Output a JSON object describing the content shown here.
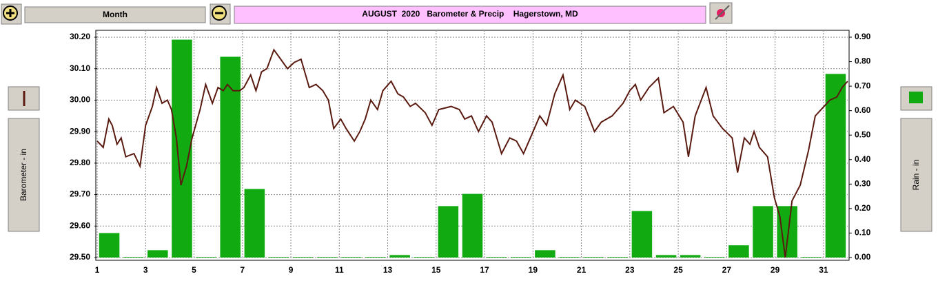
{
  "toolbar": {
    "period": "Month"
  },
  "chart_data": {
    "type": "combo",
    "title": "AUGUST  2020   Barometer & Precip    Hagerstown, MD",
    "xlim": [
      1,
      32
    ],
    "xticks": [
      1,
      3,
      5,
      7,
      9,
      11,
      13,
      15,
      17,
      19,
      21,
      23,
      25,
      27,
      29,
      31
    ],
    "ylim": [
      29.5,
      30.2
    ],
    "yticks": [
      {
        "value": 29.5,
        "label": "29.50"
      },
      {
        "value": 29.6,
        "label": "29.60"
      },
      {
        "value": 29.7,
        "label": "29.70"
      },
      {
        "value": 29.8,
        "label": "29.80"
      },
      {
        "value": 29.9,
        "label": "29.90"
      },
      {
        "value": 30.0,
        "label": "30.00"
      },
      {
        "value": 30.1,
        "label": "30.10"
      },
      {
        "value": 30.2,
        "label": "30.20"
      }
    ],
    "y2lim": [
      0,
      0.9
    ],
    "y2ticks": [
      {
        "value": 0,
        "label": "0.00"
      },
      {
        "value": 0.1,
        "label": "0.10"
      },
      {
        "value": 0.2,
        "label": "0.20"
      },
      {
        "value": 0.3,
        "label": "0.30"
      },
      {
        "value": 0.4,
        "label": "0.40"
      },
      {
        "value": 0.5,
        "label": "0.50"
      },
      {
        "value": 0.6,
        "label": "0.60"
      },
      {
        "value": 0.7,
        "label": "0.70"
      },
      {
        "value": 0.8,
        "label": "0.80"
      },
      {
        "value": 0.9,
        "label": "0.90"
      }
    ],
    "grid": true,
    "series": [
      {
        "name": "Barometer - in",
        "type": "line",
        "color": "#5a1a10",
        "x": [
          1.0,
          1.25,
          1.48,
          1.62,
          1.82,
          1.99,
          2.18,
          2.52,
          2.77,
          3.0,
          3.28,
          3.45,
          3.68,
          3.9,
          4.07,
          4.27,
          4.46,
          4.69,
          4.92,
          5.25,
          5.48,
          5.76,
          5.99,
          6.21,
          6.38,
          6.61,
          6.89,
          7.06,
          7.34,
          7.56,
          7.79,
          8.01,
          8.3,
          8.58,
          8.86,
          9.14,
          9.42,
          9.76,
          10.04,
          10.32,
          10.55,
          10.77,
          11.06,
          11.28,
          11.62,
          11.85,
          12.07,
          12.3,
          12.58,
          12.8,
          13.14,
          13.42,
          13.65,
          13.93,
          14.15,
          14.55,
          14.83,
          15.11,
          15.62,
          15.96,
          16.18,
          16.46,
          16.75,
          17.08,
          17.31,
          17.7,
          18.04,
          18.32,
          18.61,
          18.89,
          19.28,
          19.56,
          19.9,
          20.24,
          20.52,
          20.75,
          21.14,
          21.54,
          21.82,
          22.27,
          22.72,
          23.0,
          23.23,
          23.45,
          23.79,
          24.18,
          24.41,
          24.8,
          25.2,
          25.42,
          25.7,
          26.15,
          26.44,
          26.83,
          27.23,
          27.45,
          27.73,
          27.96,
          28.13,
          28.35,
          28.69,
          28.97,
          29.2,
          29.42,
          29.7,
          30.04,
          30.38,
          30.66,
          31.26,
          31.55,
          31.77,
          32.0
        ],
        "values": [
          29.87,
          29.85,
          29.94,
          29.92,
          29.86,
          29.88,
          29.82,
          29.83,
          29.79,
          29.92,
          29.98,
          30.04,
          29.99,
          30.0,
          29.97,
          29.88,
          29.73,
          29.79,
          29.88,
          29.97,
          30.05,
          29.99,
          30.04,
          30.03,
          30.05,
          30.03,
          30.03,
          30.04,
          30.08,
          30.03,
          30.09,
          30.1,
          30.16,
          30.13,
          30.1,
          30.12,
          30.13,
          30.04,
          30.05,
          30.03,
          30.0,
          29.91,
          29.94,
          29.91,
          29.87,
          29.9,
          29.94,
          30.0,
          29.97,
          30.03,
          30.06,
          30.02,
          30.01,
          29.98,
          29.99,
          29.96,
          29.92,
          29.97,
          29.98,
          29.97,
          29.94,
          29.95,
          29.9,
          29.95,
          29.93,
          29.83,
          29.88,
          29.87,
          29.83,
          29.88,
          29.95,
          29.92,
          30.02,
          30.08,
          29.97,
          30.0,
          29.98,
          29.9,
          29.93,
          29.95,
          29.99,
          30.03,
          30.05,
          30.0,
          30.04,
          30.07,
          29.96,
          29.98,
          29.93,
          29.82,
          29.95,
          30.04,
          29.95,
          29.91,
          29.88,
          29.77,
          29.88,
          29.86,
          29.9,
          29.85,
          29.82,
          29.69,
          29.63,
          29.5,
          29.68,
          29.73,
          29.84,
          29.95,
          30.0,
          30.01,
          30.04,
          30.06
        ]
      },
      {
        "name": "Rain - in",
        "type": "bar",
        "axis": "y2",
        "color": "#11aa11",
        "x": [
          1,
          2,
          3,
          4,
          5,
          6,
          7,
          8,
          9,
          10,
          11,
          12,
          13,
          14,
          15,
          16,
          17,
          18,
          19,
          20,
          21,
          22,
          23,
          24,
          25,
          26,
          27,
          28,
          29,
          30,
          31
        ],
        "values": [
          0.1,
          0,
          0.03,
          0.89,
          0,
          0.82,
          0.28,
          0,
          0,
          0,
          0,
          0,
          0.01,
          0,
          0.21,
          0.26,
          0,
          0,
          0.03,
          0,
          0,
          0,
          0.19,
          0.01,
          0.01,
          0,
          0.05,
          0.21,
          0.21,
          0,
          0.75
        ]
      }
    ]
  }
}
